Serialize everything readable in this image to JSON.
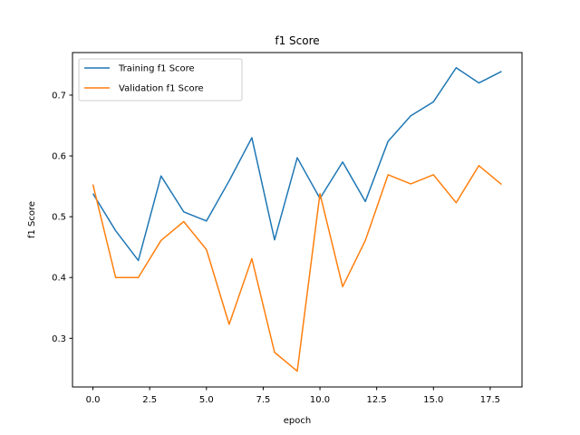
{
  "chart_data": {
    "type": "line",
    "title": "f1 Score",
    "xlabel": "epoch",
    "ylabel": "f1 Score",
    "xlim": [
      -0.9,
      18.9
    ],
    "ylim": [
      0.22,
      0.77
    ],
    "xticks": [
      0,
      2.5,
      5,
      7.5,
      10,
      12.5,
      15,
      17.5
    ],
    "xtick_labels": [
      "0.0",
      "2.5",
      "5.0",
      "7.5",
      "10.0",
      "12.5",
      "15.0",
      "17.5"
    ],
    "yticks": [
      0.3,
      0.4,
      0.5,
      0.6,
      0.7
    ],
    "ytick_labels": [
      "0.3",
      "0.4",
      "0.5",
      "0.6",
      "0.7"
    ],
    "grid": false,
    "legend_position": "top-left",
    "x": [
      0,
      1,
      2,
      3,
      4,
      5,
      6,
      7,
      8,
      9,
      10,
      11,
      12,
      13,
      14,
      15,
      16,
      17,
      18
    ],
    "series": [
      {
        "name": "Training f1 Score",
        "color": "#1f77b4",
        "values": [
          0.538,
          0.477,
          0.428,
          0.567,
          0.508,
          0.493,
          0.559,
          0.63,
          0.462,
          0.597,
          0.53,
          0.59,
          0.525,
          0.624,
          0.666,
          0.689,
          0.745,
          0.72,
          0.739
        ]
      },
      {
        "name": "Validation f1 Score",
        "color": "#ff7f0e",
        "values": [
          0.553,
          0.4,
          0.4,
          0.461,
          0.492,
          0.446,
          0.323,
          0.431,
          0.277,
          0.246,
          0.538,
          0.385,
          0.461,
          0.569,
          0.554,
          0.569,
          0.523,
          0.584,
          0.553
        ]
      }
    ]
  }
}
